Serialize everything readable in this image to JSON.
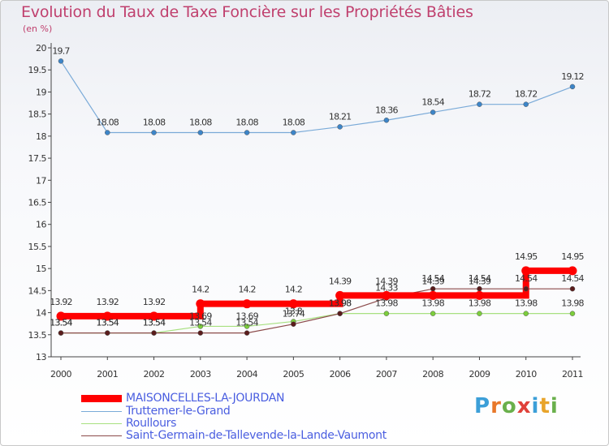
{
  "title": "Evolution du Taux de Taxe Foncière sur les Propriétés Bâties",
  "unit_label": "(en %)",
  "logo_text": "Proxiti",
  "chart_data": {
    "type": "line",
    "title": "Evolution du Taux de Taxe Foncière sur les Propriétés Bâties",
    "ylabel": "(en %)",
    "xlabel": "",
    "x": [
      "2000",
      "2001",
      "2002",
      "2003",
      "2004",
      "2005",
      "2006",
      "2007",
      "2008",
      "2009",
      "2010",
      "2011"
    ],
    "ylim": [
      13,
      20
    ],
    "yticks": [
      "13",
      "13.5",
      "14",
      "14.5",
      "15",
      "15.5",
      "16",
      "16.5",
      "17",
      "17.5",
      "18",
      "18.5",
      "19",
      "19.5",
      "20"
    ],
    "grid": false,
    "legend_position": "bottom-left",
    "series": [
      {
        "name": "MAISONCELLES-LA-JOURDAN",
        "color": "#ff0000",
        "style": "step-thick",
        "values": [
          13.92,
          13.92,
          13.92,
          14.2,
          14.2,
          14.2,
          14.39,
          14.39,
          14.39,
          14.39,
          14.95,
          14.95
        ],
        "labels": [
          "13.92",
          "13.92",
          "13.92",
          "14.2",
          "14.2",
          "14.2",
          "14.39",
          "14.39",
          "14.39",
          "14.39",
          "14.95",
          "14.95"
        ]
      },
      {
        "name": "Truttemer-le-Grand",
        "color": "#7aaad8",
        "marker_color": "#3d85c8",
        "style": "line",
        "values": [
          19.7,
          18.08,
          18.08,
          18.08,
          18.08,
          18.08,
          18.21,
          18.36,
          18.54,
          18.72,
          18.72,
          19.12
        ],
        "labels": [
          "19.7",
          "18.08",
          "18.08",
          "18.08",
          "18.08",
          "18.08",
          "18.21",
          "18.36",
          "18.54",
          "18.72",
          "18.72",
          "19.12"
        ]
      },
      {
        "name": "Roullours",
        "color": "#a8e080",
        "marker_color": "#7ccd3c",
        "style": "line",
        "values": [
          13.54,
          13.54,
          13.54,
          13.69,
          13.69,
          13.8,
          13.98,
          13.98,
          13.98,
          13.98,
          13.98,
          13.98
        ],
        "labels": [
          "13.54",
          "13.54",
          "13.54",
          "13.69",
          "13.69",
          "13.8",
          "13.98",
          "13.98",
          "13.98",
          "13.98",
          "13.98",
          "13.98"
        ]
      },
      {
        "name": "Saint-Germain-de-Tallevende-la-Lande-Vaumont",
        "color": "#8b4a4a",
        "marker_color": "#5a1c1c",
        "style": "line",
        "values": [
          13.54,
          13.54,
          13.54,
          13.54,
          13.54,
          13.74,
          13.98,
          14.33,
          14.54,
          14.54,
          14.54,
          14.54
        ],
        "labels": [
          "13.54",
          "13.54",
          "13.54",
          "13.54",
          "13.54",
          "13.74",
          "13.98",
          "14.33",
          "14.54",
          "14.54",
          "14.54",
          "14.54"
        ]
      }
    ]
  }
}
